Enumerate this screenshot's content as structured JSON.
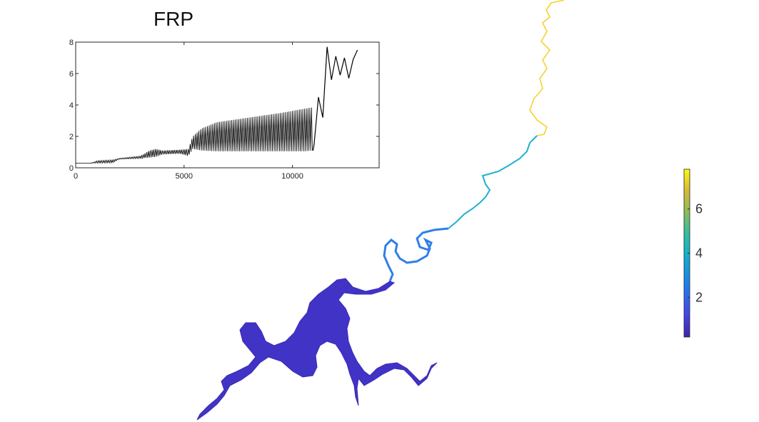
{
  "title": "FRP",
  "chart_data": [
    {
      "type": "line",
      "title": "FRP",
      "xlabel": "",
      "ylabel": "",
      "xlim": [
        0,
        14000
      ],
      "ylim": [
        0,
        8
      ],
      "x_ticks": [
        "0",
        "5000",
        "10000"
      ],
      "y_ticks": [
        "0",
        "2",
        "4",
        "6",
        "8"
      ],
      "grid": false,
      "legend": "none",
      "line_color": "#000000",
      "envelope": {
        "x": [
          0,
          700,
          1000,
          1700,
          2000,
          3000,
          3400,
          3700,
          4000,
          4800,
          5200,
          5400,
          5800,
          6500,
          7500,
          8500,
          9500,
          10500,
          10950
        ],
        "upper": [
          0.3,
          0.3,
          0.45,
          0.5,
          0.6,
          0.75,
          1.1,
          1.2,
          1.1,
          1.15,
          1.2,
          2.0,
          2.5,
          2.9,
          3.1,
          3.3,
          3.5,
          3.75,
          3.85
        ],
        "lower": [
          0.3,
          0.3,
          0.3,
          0.32,
          0.55,
          0.6,
          0.65,
          0.7,
          0.85,
          0.9,
          0.75,
          1.2,
          1.1,
          1.05,
          1.05,
          1.05,
          1.05,
          1.05,
          1.1
        ]
      },
      "tail": {
        "x": [
          11000,
          11200,
          11400,
          11600,
          11800,
          12000,
          12200,
          12400,
          12600,
          12800,
          13000
        ],
        "y": [
          1.5,
          4.5,
          3.2,
          7.7,
          5.6,
          7.1,
          5.9,
          7.0,
          5.7,
          6.9,
          7.5
        ]
      }
    },
    {
      "type": "heatmap",
      "colormap": "parula",
      "colorbar_ticks": [
        "2",
        "4",
        "6"
      ],
      "colorbar_range": [
        0.2,
        7.8
      ],
      "colorbar_values": [
        2,
        4,
        6
      ],
      "low_color": "#3e26a8",
      "mid_color": "#1eaccf",
      "high_color": "#f9fb0e"
    }
  ]
}
